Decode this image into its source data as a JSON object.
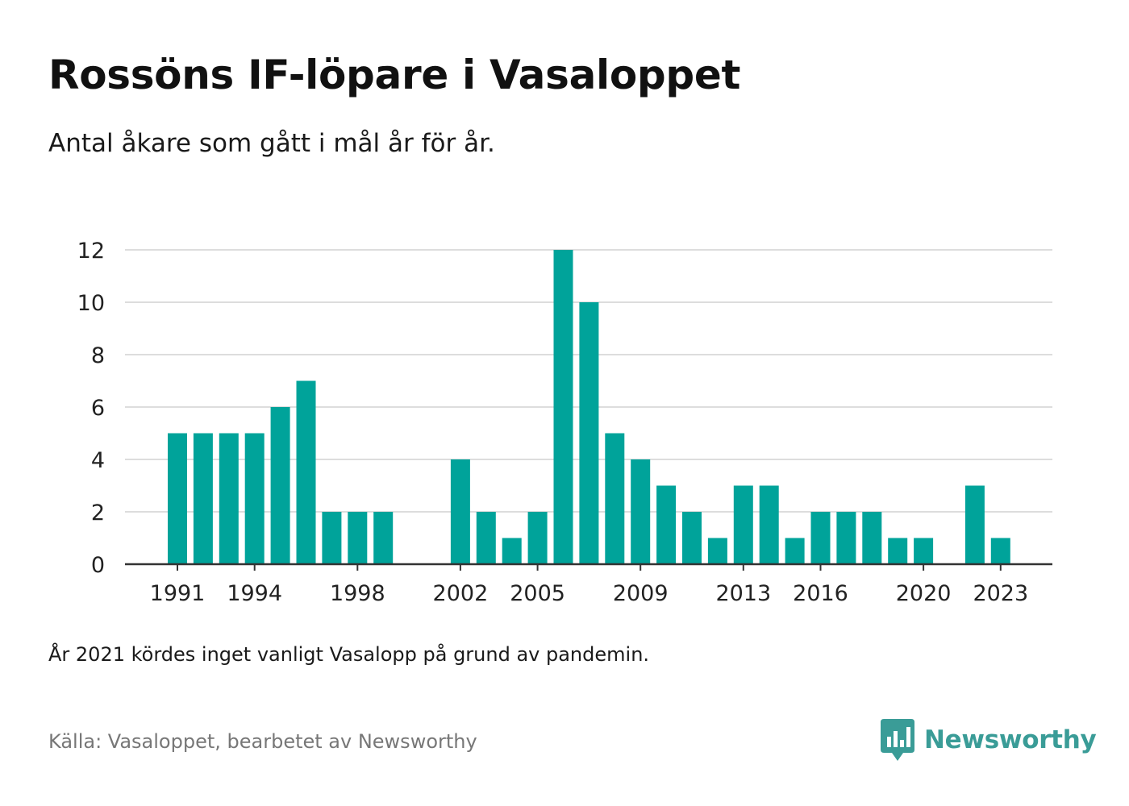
{
  "header": {
    "title": "Rossöns IF-löpare i Vasaloppet",
    "subtitle": "Antal åkare som gått i mål år för år."
  },
  "footer": {
    "note": "År 2021 kördes inget vanligt Vasalopp på grund av pandemin.",
    "source": "Källa: Vasaloppet, bearbetet av Newsworthy",
    "brand": "Newsworthy",
    "brand_icon": "newsworthy-logo-icon"
  },
  "colors": {
    "bar": "#00a39a",
    "grid": "#dddddd",
    "axis": "#333333",
    "brand": "#3a9c97"
  },
  "chart_data": {
    "type": "bar",
    "title": "Rossöns IF-löpare i Vasaloppet",
    "subtitle": "Antal åkare som gått i mål år för år.",
    "xlabel": "",
    "ylabel": "",
    "categories": [
      1991,
      1992,
      1993,
      1994,
      1995,
      1996,
      1997,
      1998,
      1999,
      2000,
      2001,
      2002,
      2003,
      2004,
      2005,
      2006,
      2007,
      2008,
      2009,
      2010,
      2011,
      2012,
      2013,
      2014,
      2015,
      2016,
      2017,
      2018,
      2019,
      2020,
      2021,
      2022,
      2023
    ],
    "values": [
      5,
      5,
      5,
      5,
      6,
      7,
      2,
      2,
      2,
      0,
      0,
      4,
      2,
      1,
      2,
      12,
      10,
      5,
      4,
      3,
      2,
      1,
      3,
      3,
      1,
      2,
      2,
      2,
      1,
      1,
      0,
      3,
      1
    ],
    "x_tick_labels": [
      "1991",
      "1994",
      "1998",
      "2002",
      "2005",
      "2009",
      "2013",
      "2016",
      "2020",
      "2023"
    ],
    "y_ticks": [
      0,
      2,
      4,
      6,
      8,
      10,
      12
    ],
    "ylim": [
      0,
      12
    ],
    "grid": true,
    "legend": "none"
  }
}
